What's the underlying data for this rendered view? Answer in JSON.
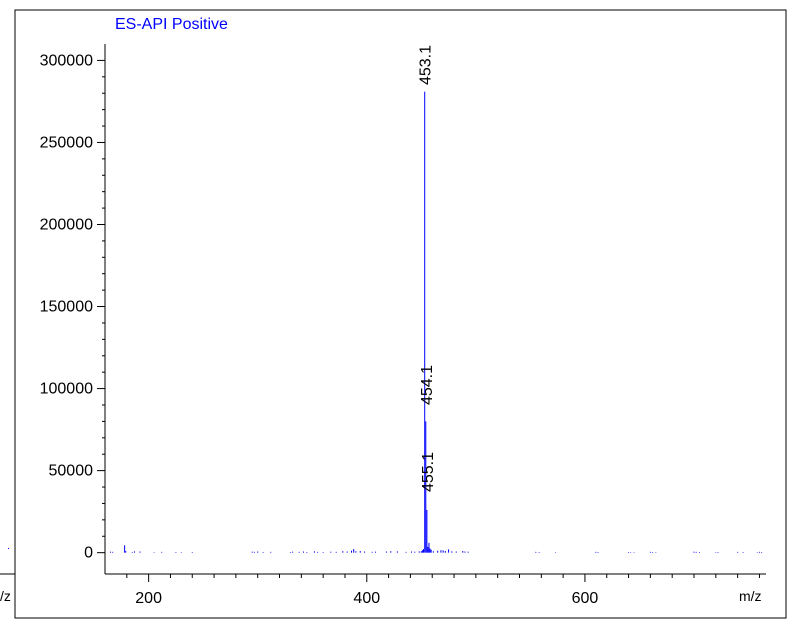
{
  "chart_data": {
    "type": "bar",
    "title": "ES-API Positive",
    "xlabel": "m/z",
    "ylabel": "",
    "xlim": [
      160,
      766
    ],
    "ylim": [
      -13000,
      310000
    ],
    "x_ticks": [
      200,
      400,
      600
    ],
    "y_ticks": [
      0,
      50000,
      100000,
      150000,
      200000,
      250000,
      300000
    ],
    "y_tick_labels": [
      "0",
      "50000",
      "100000",
      "150000",
      "200000",
      "250000",
      "300000"
    ],
    "peak_labels": [
      {
        "x": 453.1,
        "text": "453.1"
      },
      {
        "x": 454.1,
        "text": "454.1"
      },
      {
        "x": 455.1,
        "text": "455.1"
      }
    ],
    "series": [
      {
        "x": [
          165,
          167,
          178,
          179,
          185,
          187,
          192,
          205,
          212,
          225,
          230,
          240,
          295,
          297,
          300,
          305,
          312,
          330,
          332,
          338,
          342,
          345,
          352,
          355,
          360,
          367,
          372,
          378,
          382,
          386,
          388,
          390,
          394,
          398,
          405,
          408,
          418,
          422,
          428,
          436,
          441,
          444,
          448,
          450,
          451,
          452,
          453.1,
          454.1,
          455.1,
          456,
          457,
          458,
          459,
          461,
          465,
          468,
          470,
          472,
          475,
          478,
          482,
          488,
          490,
          493,
          555,
          558,
          573,
          610,
          612,
          640,
          642,
          645,
          660,
          662,
          665,
          700,
          702,
          705,
          720,
          722,
          740,
          745,
          758,
          760,
          762
        ],
        "values": [
          600,
          500,
          4500,
          1000,
          400,
          800,
          700,
          300,
          500,
          400,
          300,
          400,
          600,
          500,
          700,
          400,
          500,
          400,
          600,
          500,
          700,
          400,
          800,
          500,
          400,
          600,
          500,
          900,
          700,
          1200,
          2200,
          900,
          1000,
          700,
          500,
          600,
          700,
          900,
          800,
          500,
          700,
          600,
          800,
          900,
          1500,
          2200,
          281000,
          80000,
          26000,
          3500,
          6000,
          2500,
          1800,
          900,
          1200,
          1500,
          1400,
          1000,
          2000,
          800,
          700,
          1000,
          700,
          600,
          500,
          400,
          300,
          500,
          400,
          400,
          300,
          300,
          500,
          400,
          300,
          600,
          500,
          400,
          300,
          400,
          500,
          400,
          300,
          500,
          400
        ]
      }
    ],
    "grid": false,
    "legend": "none"
  },
  "colors": {
    "peaks": "#0000ff",
    "title": "#0000ff",
    "axis": "#000000",
    "frame": "#000000"
  }
}
